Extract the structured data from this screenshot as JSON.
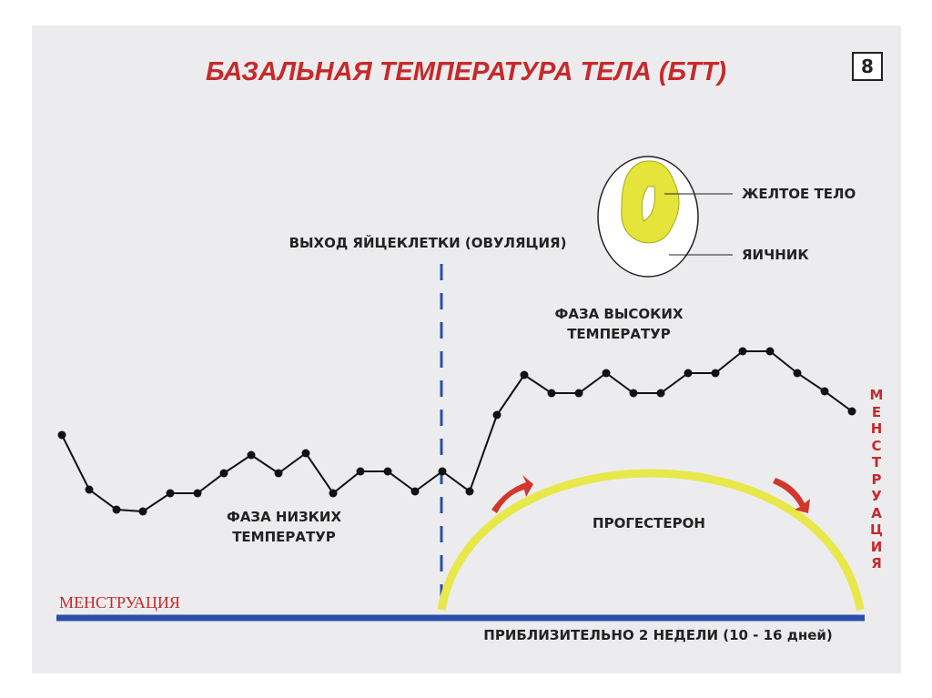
{
  "header": {
    "title": "БАЗАЛЬНАЯ ТЕМПЕРАТУРА ТЕЛА (БТТ)",
    "page_number": "8"
  },
  "labels": {
    "ovulation": "ВЫХОД ЯЙЦЕКЛЕТКИ (ОВУЛЯЦИЯ)",
    "corpus_luteum": "ЖЕЛТОЕ ТЕЛО",
    "ovary": "ЯИЧНИК",
    "high_phase": [
      "ФАЗА ВЫСОКИХ",
      "ТЕМПЕРАТУР"
    ],
    "low_phase": [
      "ФАЗА НИЗКИХ",
      "ТЕМПЕРАТУР"
    ],
    "progesterone": "ПРОГЕСТЕРОН",
    "menstruation_left": "МЕНСТРУАЦИЯ",
    "menstruation_vertical": "МЕНСТРУАЦИЯ",
    "duration": "ПРИБЛИЗИТЕЛЬНО 2 НЕДЕЛИ (10 - 16 дней)"
  }
}
